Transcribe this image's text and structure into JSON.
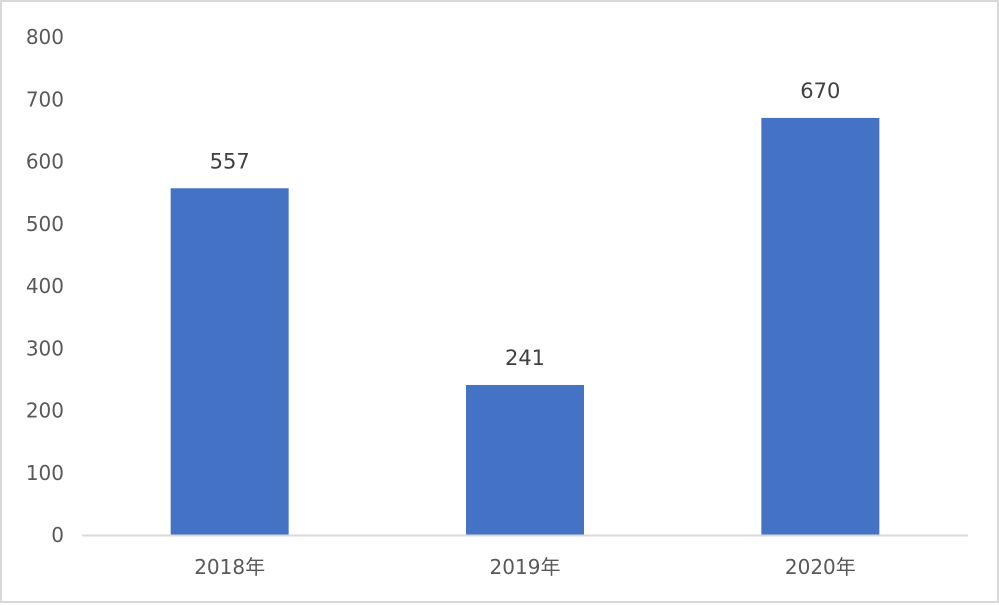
{
  "chart_data": {
    "type": "bar",
    "title": "",
    "xlabel": "",
    "ylabel": "",
    "categories": [
      "2018年",
      "2019年",
      "2020年"
    ],
    "values": [
      557,
      241,
      670
    ],
    "data_labels": [
      "557",
      "241",
      "670"
    ],
    "ylim": [
      0,
      800
    ],
    "yticks": [
      0,
      100,
      200,
      300,
      400,
      500,
      600,
      700,
      800
    ],
    "ytick_labels": [
      "0",
      "100",
      "200",
      "300",
      "400",
      "500",
      "600",
      "700",
      "800"
    ],
    "grid": false,
    "legend": "none",
    "bar_color": "#4472c4",
    "axis_color": "#d9d9d9"
  }
}
